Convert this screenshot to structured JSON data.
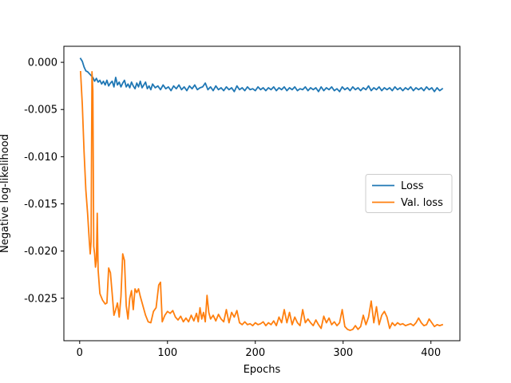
{
  "chart_data": {
    "type": "line",
    "title": "",
    "xlabel": "Epochs",
    "ylabel": "Negative log-likelihood",
    "xlim": [
      -18,
      433
    ],
    "ylim": [
      -0.0295,
      0.0017
    ],
    "xticks": [
      0,
      100,
      200,
      300,
      400
    ],
    "yticks": [
      0.0,
      -0.005,
      -0.01,
      -0.015,
      -0.02,
      -0.025
    ],
    "ytick_labels": [
      "0.000",
      "-0.005",
      "-0.010",
      "-0.015",
      "-0.020",
      "-0.025"
    ],
    "grid": false,
    "legend_position": "center-right",
    "series": [
      {
        "name": "Loss",
        "color": "#1f77b4",
        "points": [
          [
            1,
            0.0004
          ],
          [
            3,
            0.0001
          ],
          [
            5,
            -0.0005
          ],
          [
            7,
            -0.0009
          ],
          [
            9,
            -0.001
          ],
          [
            11,
            -0.0012
          ],
          [
            13,
            -0.0014
          ],
          [
            15,
            -0.0016
          ],
          [
            17,
            -0.002
          ],
          [
            19,
            -0.0017
          ],
          [
            21,
            -0.0021
          ],
          [
            23,
            -0.0019
          ],
          [
            25,
            -0.0023
          ],
          [
            27,
            -0.002
          ],
          [
            29,
            -0.0024
          ],
          [
            31,
            -0.0019
          ],
          [
            33,
            -0.0025
          ],
          [
            35,
            -0.0022
          ],
          [
            37,
            -0.002
          ],
          [
            39,
            -0.0026
          ],
          [
            41,
            -0.0016
          ],
          [
            43,
            -0.0024
          ],
          [
            45,
            -0.0021
          ],
          [
            47,
            -0.0026
          ],
          [
            49,
            -0.0022
          ],
          [
            51,
            -0.0019
          ],
          [
            53,
            -0.0026
          ],
          [
            55,
            -0.0023
          ],
          [
            57,
            -0.0027
          ],
          [
            59,
            -0.0021
          ],
          [
            61,
            -0.0025
          ],
          [
            63,
            -0.0028
          ],
          [
            65,
            -0.0022
          ],
          [
            67,
            -0.0026
          ],
          [
            69,
            -0.002
          ],
          [
            71,
            -0.0027
          ],
          [
            73,
            -0.0024
          ],
          [
            75,
            -0.0021
          ],
          [
            77,
            -0.0028
          ],
          [
            79,
            -0.0025
          ],
          [
            81,
            -0.0029
          ],
          [
            83,
            -0.0023
          ],
          [
            86,
            -0.0027
          ],
          [
            89,
            -0.0025
          ],
          [
            92,
            -0.0029
          ],
          [
            95,
            -0.0024
          ],
          [
            98,
            -0.0028
          ],
          [
            101,
            -0.0026
          ],
          [
            104,
            -0.003
          ],
          [
            107,
            -0.0025
          ],
          [
            110,
            -0.0028
          ],
          [
            113,
            -0.0024
          ],
          [
            116,
            -0.0029
          ],
          [
            119,
            -0.0026
          ],
          [
            122,
            -0.003
          ],
          [
            125,
            -0.0025
          ],
          [
            128,
            -0.0028
          ],
          [
            131,
            -0.0024
          ],
          [
            134,
            -0.0029
          ],
          [
            137,
            -0.0027
          ],
          [
            140,
            -0.0026
          ],
          [
            143,
            -0.0022
          ],
          [
            146,
            -0.0029
          ],
          [
            149,
            -0.0026
          ],
          [
            152,
            -0.003
          ],
          [
            155,
            -0.0025
          ],
          [
            158,
            -0.0029
          ],
          [
            161,
            -0.0027
          ],
          [
            164,
            -0.003
          ],
          [
            167,
            -0.0026
          ],
          [
            170,
            -0.0029
          ],
          [
            173,
            -0.0027
          ],
          [
            176,
            -0.0031
          ],
          [
            179,
            -0.0025
          ],
          [
            182,
            -0.0029
          ],
          [
            185,
            -0.0027
          ],
          [
            188,
            -0.003
          ],
          [
            191,
            -0.0026
          ],
          [
            194,
            -0.0029
          ],
          [
            197,
            -0.0028
          ],
          [
            200,
            -0.003
          ],
          [
            203,
            -0.0026
          ],
          [
            206,
            -0.0029
          ],
          [
            209,
            -0.0027
          ],
          [
            212,
            -0.003
          ],
          [
            215,
            -0.0027
          ],
          [
            218,
            -0.0029
          ],
          [
            221,
            -0.0026
          ],
          [
            224,
            -0.003
          ],
          [
            227,
            -0.0027
          ],
          [
            230,
            -0.0029
          ],
          [
            233,
            -0.0026
          ],
          [
            236,
            -0.003
          ],
          [
            239,
            -0.0027
          ],
          [
            242,
            -0.0029
          ],
          [
            245,
            -0.0026
          ],
          [
            248,
            -0.003
          ],
          [
            251,
            -0.0028
          ],
          [
            254,
            -0.0029
          ],
          [
            257,
            -0.0026
          ],
          [
            260,
            -0.003
          ],
          [
            263,
            -0.0027
          ],
          [
            266,
            -0.0029
          ],
          [
            269,
            -0.0027
          ],
          [
            272,
            -0.0031
          ],
          [
            275,
            -0.0026
          ],
          [
            278,
            -0.003
          ],
          [
            281,
            -0.0027
          ],
          [
            284,
            -0.0029
          ],
          [
            287,
            -0.0026
          ],
          [
            290,
            -0.003
          ],
          [
            293,
            -0.0028
          ],
          [
            296,
            -0.0031
          ],
          [
            299,
            -0.0026
          ],
          [
            302,
            -0.0029
          ],
          [
            305,
            -0.0027
          ],
          [
            308,
            -0.003
          ],
          [
            311,
            -0.0026
          ],
          [
            314,
            -0.0029
          ],
          [
            317,
            -0.0027
          ],
          [
            320,
            -0.003
          ],
          [
            323,
            -0.0027
          ],
          [
            326,
            -0.0029
          ],
          [
            329,
            -0.0025
          ],
          [
            332,
            -0.003
          ],
          [
            335,
            -0.0027
          ],
          [
            338,
            -0.0029
          ],
          [
            341,
            -0.0026
          ],
          [
            344,
            -0.003
          ],
          [
            347,
            -0.0027
          ],
          [
            350,
            -0.0029
          ],
          [
            353,
            -0.0027
          ],
          [
            356,
            -0.003
          ],
          [
            359,
            -0.0026
          ],
          [
            362,
            -0.0029
          ],
          [
            365,
            -0.0027
          ],
          [
            368,
            -0.003
          ],
          [
            371,
            -0.0027
          ],
          [
            374,
            -0.0029
          ],
          [
            377,
            -0.0026
          ],
          [
            380,
            -0.003
          ],
          [
            383,
            -0.0027
          ],
          [
            386,
            -0.0029
          ],
          [
            389,
            -0.0027
          ],
          [
            392,
            -0.003
          ],
          [
            395,
            -0.0026
          ],
          [
            398,
            -0.0029
          ],
          [
            401,
            -0.0027
          ],
          [
            404,
            -0.0031
          ],
          [
            407,
            -0.0027
          ],
          [
            410,
            -0.003
          ],
          [
            413,
            -0.0028
          ]
        ]
      },
      {
        "name": "Val. loss",
        "color": "#ff7f0e",
        "points": [
          [
            1,
            -0.001
          ],
          [
            3,
            -0.0045
          ],
          [
            5,
            -0.0095
          ],
          [
            7,
            -0.0135
          ],
          [
            9,
            -0.016
          ],
          [
            10,
            -0.0175
          ],
          [
            11,
            -0.019
          ],
          [
            12,
            -0.0203
          ],
          [
            13,
            -0.019
          ],
          [
            14,
            -0.001
          ],
          [
            15,
            -0.003
          ],
          [
            16,
            -0.0195
          ],
          [
            17,
            -0.0203
          ],
          [
            18,
            -0.0217
          ],
          [
            19,
            -0.021
          ],
          [
            20,
            -0.016
          ],
          [
            21,
            -0.022
          ],
          [
            23,
            -0.0245
          ],
          [
            26,
            -0.0252
          ],
          [
            29,
            -0.0256
          ],
          [
            31,
            -0.0255
          ],
          [
            33,
            -0.0218
          ],
          [
            35,
            -0.0223
          ],
          [
            37,
            -0.0245
          ],
          [
            39,
            -0.0268
          ],
          [
            41,
            -0.0262
          ],
          [
            43,
            -0.0255
          ],
          [
            45,
            -0.027
          ],
          [
            47,
            -0.0248
          ],
          [
            49,
            -0.0203
          ],
          [
            51,
            -0.021
          ],
          [
            53,
            -0.0258
          ],
          [
            55,
            -0.0272
          ],
          [
            57,
            -0.025
          ],
          [
            59,
            -0.0242
          ],
          [
            61,
            -0.0262
          ],
          [
            63,
            -0.024
          ],
          [
            65,
            -0.0244
          ],
          [
            67,
            -0.024
          ],
          [
            69,
            -0.0248
          ],
          [
            72,
            -0.0258
          ],
          [
            75,
            -0.0268
          ],
          [
            78,
            -0.0275
          ],
          [
            81,
            -0.0276
          ],
          [
            84,
            -0.0264
          ],
          [
            87,
            -0.026
          ],
          [
            90,
            -0.0236
          ],
          [
            92,
            -0.0233
          ],
          [
            94,
            -0.0275
          ],
          [
            97,
            -0.0268
          ],
          [
            100,
            -0.0264
          ],
          [
            103,
            -0.0266
          ],
          [
            106,
            -0.0263
          ],
          [
            109,
            -0.027
          ],
          [
            112,
            -0.0273
          ],
          [
            115,
            -0.0269
          ],
          [
            118,
            -0.0275
          ],
          [
            121,
            -0.0271
          ],
          [
            124,
            -0.0275
          ],
          [
            127,
            -0.0268
          ],
          [
            130,
            -0.0274
          ],
          [
            133,
            -0.0266
          ],
          [
            135,
            -0.0275
          ],
          [
            137,
            -0.026
          ],
          [
            139,
            -0.0272
          ],
          [
            141,
            -0.0265
          ],
          [
            143,
            -0.0275
          ],
          [
            145,
            -0.0247
          ],
          [
            147,
            -0.0265
          ],
          [
            149,
            -0.0272
          ],
          [
            152,
            -0.0268
          ],
          [
            155,
            -0.0274
          ],
          [
            158,
            -0.0267
          ],
          [
            161,
            -0.0272
          ],
          [
            164,
            -0.0275
          ],
          [
            167,
            -0.0262
          ],
          [
            170,
            -0.0276
          ],
          [
            173,
            -0.0265
          ],
          [
            176,
            -0.027
          ],
          [
            179,
            -0.0263
          ],
          [
            182,
            -0.0276
          ],
          [
            185,
            -0.0278
          ],
          [
            188,
            -0.0275
          ],
          [
            191,
            -0.0278
          ],
          [
            194,
            -0.0277
          ],
          [
            197,
            -0.0279
          ],
          [
            200,
            -0.0276
          ],
          [
            203,
            -0.0278
          ],
          [
            206,
            -0.0277
          ],
          [
            209,
            -0.0275
          ],
          [
            212,
            -0.0279
          ],
          [
            215,
            -0.0276
          ],
          [
            218,
            -0.0278
          ],
          [
            221,
            -0.0274
          ],
          [
            224,
            -0.0279
          ],
          [
            227,
            -0.027
          ],
          [
            230,
            -0.0276
          ],
          [
            233,
            -0.0262
          ],
          [
            236,
            -0.0276
          ],
          [
            239,
            -0.0265
          ],
          [
            242,
            -0.0278
          ],
          [
            245,
            -0.027
          ],
          [
            248,
            -0.0276
          ],
          [
            251,
            -0.0279
          ],
          [
            254,
            -0.0262
          ],
          [
            257,
            -0.0276
          ],
          [
            260,
            -0.0272
          ],
          [
            263,
            -0.0276
          ],
          [
            266,
            -0.0279
          ],
          [
            269,
            -0.0273
          ],
          [
            272,
            -0.0278
          ],
          [
            275,
            -0.0282
          ],
          [
            278,
            -0.0269
          ],
          [
            281,
            -0.0276
          ],
          [
            284,
            -0.0271
          ],
          [
            287,
            -0.0278
          ],
          [
            290,
            -0.0275
          ],
          [
            293,
            -0.0279
          ],
          [
            296,
            -0.0276
          ],
          [
            299,
            -0.0262
          ],
          [
            302,
            -0.028
          ],
          [
            305,
            -0.0283
          ],
          [
            308,
            -0.0284
          ],
          [
            311,
            -0.0283
          ],
          [
            314,
            -0.0279
          ],
          [
            317,
            -0.0283
          ],
          [
            320,
            -0.028
          ],
          [
            323,
            -0.0268
          ],
          [
            326,
            -0.0278
          ],
          [
            329,
            -0.027
          ],
          [
            332,
            -0.0253
          ],
          [
            335,
            -0.0276
          ],
          [
            338,
            -0.0259
          ],
          [
            341,
            -0.0278
          ],
          [
            344,
            -0.0268
          ],
          [
            347,
            -0.0264
          ],
          [
            350,
            -0.027
          ],
          [
            353,
            -0.0282
          ],
          [
            356,
            -0.0276
          ],
          [
            359,
            -0.0279
          ],
          [
            362,
            -0.0276
          ],
          [
            365,
            -0.0278
          ],
          [
            368,
            -0.0277
          ],
          [
            371,
            -0.0279
          ],
          [
            374,
            -0.0278
          ],
          [
            377,
            -0.0277
          ],
          [
            380,
            -0.0279
          ],
          [
            383,
            -0.0276
          ],
          [
            386,
            -0.0271
          ],
          [
            389,
            -0.0276
          ],
          [
            392,
            -0.0279
          ],
          [
            395,
            -0.0278
          ],
          [
            398,
            -0.0272
          ],
          [
            401,
            -0.0276
          ],
          [
            404,
            -0.028
          ],
          [
            407,
            -0.0278
          ],
          [
            410,
            -0.0279
          ],
          [
            413,
            -0.0278
          ]
        ]
      }
    ]
  }
}
